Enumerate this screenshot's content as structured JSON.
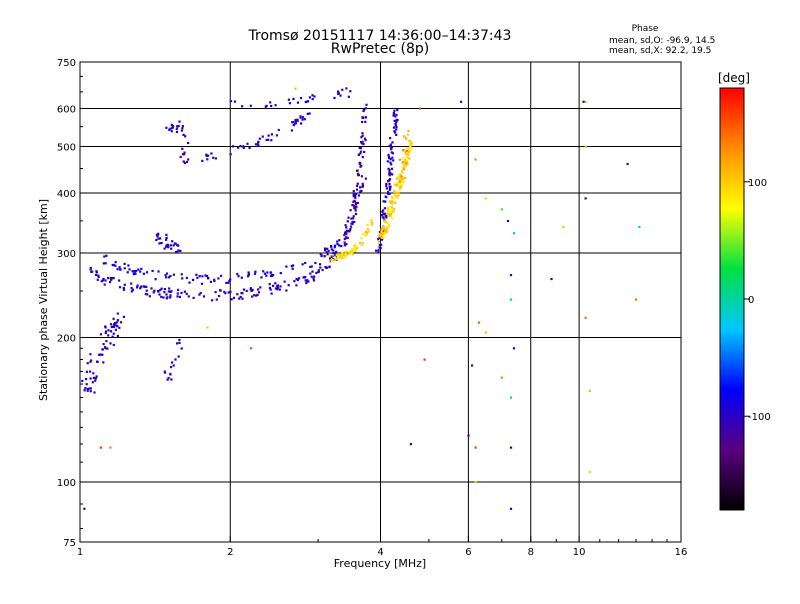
{
  "header": {
    "title_line1": "Tromsø 20151117 14:36:00–14:37:43",
    "title_line2": "RwPretec (8p)",
    "stats_title": "Phase",
    "stats_line1": "mean, sd,O: -96.9, 14.5",
    "stats_line2": "mean, sd,X:  92.2, 19.5"
  },
  "colorbar": {
    "label": "[deg]",
    "ticks": [
      {
        "value": 100,
        "label": "100"
      },
      {
        "value": 0,
        "label": "0"
      },
      {
        "value": -100,
        "label": "-100"
      }
    ],
    "range": [
      -180,
      180
    ],
    "colors": [
      "#000000",
      "#5a0080",
      "#0000ff",
      "#00c8ff",
      "#00e040",
      "#ffff00",
      "#ff8c00",
      "#ff0000"
    ]
  },
  "chart_data": {
    "type": "scatter",
    "title": "Tromsø 20151117 14:36:00–14:37:43",
    "subtitle": "RwPretec (8p)",
    "xlabel": "Frequency [MHz]",
    "ylabel": "Stationary phase Virtual Height [km]",
    "xscale": "log",
    "yscale": "log",
    "xlim": [
      1,
      16
    ],
    "ylim": [
      75,
      750
    ],
    "grid": true,
    "x_ticks": [
      {
        "value": 1,
        "label": "1"
      },
      {
        "value": 2,
        "label": "2"
      },
      {
        "value": 4,
        "label": "4"
      },
      {
        "value": 6,
        "label": "6"
      },
      {
        "value": 8,
        "label": "8"
      },
      {
        "value": 10,
        "label": "10"
      },
      {
        "value": 16,
        "label": "16"
      }
    ],
    "x_gridlines": [
      2,
      4,
      6,
      8,
      10
    ],
    "y_ticks": [
      {
        "value": 75,
        "label": "75"
      },
      {
        "value": 100,
        "label": "100"
      },
      {
        "value": 200,
        "label": "200"
      },
      {
        "value": 300,
        "label": "300"
      },
      {
        "value": 400,
        "label": "400"
      },
      {
        "value": 500,
        "label": "500"
      },
      {
        "value": 600,
        "label": "600"
      },
      {
        "value": 750,
        "label": "750"
      }
    ],
    "y_gridlines": [
      100,
      200,
      300,
      400,
      500,
      600
    ],
    "color_by": "phase_deg",
    "series": [
      {
        "traces": [
          {
            "x": [
              1.05,
              1.1,
              1.2,
              1.35,
              1.5,
              1.7,
              1.9,
              2.1,
              2.4,
              2.7,
              3.0,
              3.2,
              3.4,
              3.55,
              3.7
            ],
            "y": [
              280,
              266,
              257,
              250,
              247,
              245,
              245,
              247,
              252,
              260,
              272,
              290,
              320,
              370,
              430
            ],
            "phase": -100,
            "spread": 0.035,
            "n": 14
          },
          {
            "x": [
              1.12,
              1.2,
              1.3,
              1.45,
              1.6,
              1.8,
              2.0,
              2.3,
              2.6,
              2.9,
              3.1,
              3.3
            ],
            "y": [
              292,
              282,
              275,
              268,
              266,
              264,
              265,
              270,
              278,
              286,
              300,
              318
            ],
            "phase": -95,
            "spread": 0.03,
            "n": 10
          },
          {
            "x": [
              3.35,
              3.45,
              3.55,
              3.62,
              3.68,
              3.72
            ],
            "y": [
              310,
              340,
              380,
              430,
              500,
              610
            ],
            "phase": -110,
            "spread": 0.025,
            "n": 16
          },
          {
            "x": [
              3.95,
              4.02,
              4.08,
              4.15,
              4.2,
              4.25,
              4.3
            ],
            "y": [
              300,
              330,
              370,
              420,
              480,
              540,
              600
            ],
            "phase": -100,
            "spread": 0.025,
            "n": 18
          },
          {
            "x": [
              1.38,
              1.45,
              1.5,
              1.55,
              1.6
            ],
            "y": [
              335,
              322,
              315,
              310,
              305
            ],
            "phase": -100,
            "spread": 0.04,
            "n": 8
          },
          {
            "x": [
              1.02,
              1.05,
              1.08,
              1.12,
              1.16,
              1.2
            ],
            "y": [
              150,
              165,
              180,
              195,
              210,
              220
            ],
            "phase": -100,
            "spread": 0.06,
            "n": 14
          },
          {
            "x": [
              1.5,
              1.55,
              1.6,
              1.65
            ],
            "y": [
              530,
              560,
              520,
              450
            ],
            "phase": -100,
            "spread": 0.05,
            "n": 10
          },
          {
            "x": [
              1.75,
              1.9,
              2.1,
              2.3,
              2.5,
              2.7,
              2.9
            ],
            "y": [
              470,
              480,
              500,
              510,
              530,
              560,
              600
            ],
            "phase": -100,
            "spread": 0.03,
            "n": 8
          },
          {
            "x": [
              2.0,
              2.3,
              2.6,
              2.9,
              3.2,
              3.5
            ],
            "y": [
              610,
              600,
              620,
              630,
              640,
              650
            ],
            "phase": -100,
            "spread": 0.03,
            "n": 6
          },
          {
            "x": [
              1.5,
              1.55,
              1.6
            ],
            "y": [
              165,
              180,
              195
            ],
            "phase": -100,
            "spread": 0.04,
            "n": 8
          }
        ]
      },
      {
        "traces": [
          {
            "x": [
              3.15,
              3.3,
              3.45,
              3.6,
              3.75,
              3.85
            ],
            "y": [
              292,
              296,
              300,
              310,
              330,
              350
            ],
            "phase": 95,
            "spread": 0.02,
            "n": 12
          },
          {
            "x": [
              4.0,
              4.1,
              4.2,
              4.3,
              4.4,
              4.5,
              4.6
            ],
            "y": [
              320,
              345,
              370,
              400,
              430,
              470,
              520
            ],
            "phase": 95,
            "spread": 0.03,
            "n": 22
          },
          {
            "x": [
              4.35,
              4.45,
              4.55
            ],
            "y": [
              420,
              480,
              550
            ],
            "phase": 120,
            "spread": 0.03,
            "n": 6
          }
        ]
      },
      {
        "points": [
          {
            "x": 6.2,
            "y": 470,
            "phase": 130
          },
          {
            "x": 6.5,
            "y": 390,
            "phase": 95
          },
          {
            "x": 7.0,
            "y": 370,
            "phase": 40
          },
          {
            "x": 7.2,
            "y": 350,
            "phase": -100
          },
          {
            "x": 7.4,
            "y": 330,
            "phase": 10
          },
          {
            "x": 7.3,
            "y": 270,
            "phase": -100
          },
          {
            "x": 7.3,
            "y": 240,
            "phase": -20
          },
          {
            "x": 6.3,
            "y": 215,
            "phase": 150
          },
          {
            "x": 6.5,
            "y": 205,
            "phase": 110
          },
          {
            "x": 7.4,
            "y": 190,
            "phase": -100
          },
          {
            "x": 6.1,
            "y": 175,
            "phase": -110
          },
          {
            "x": 7.0,
            "y": 165,
            "phase": 130
          },
          {
            "x": 7.3,
            "y": 150,
            "phase": -20
          },
          {
            "x": 6.0,
            "y": 125,
            "phase": -120
          },
          {
            "x": 6.2,
            "y": 118,
            "phase": 160
          },
          {
            "x": 7.3,
            "y": 118,
            "phase": -100
          },
          {
            "x": 6.2,
            "y": 100,
            "phase": 100
          },
          {
            "x": 7.3,
            "y": 88,
            "phase": -100
          },
          {
            "x": 8.8,
            "y": 265,
            "phase": -100
          },
          {
            "x": 10.3,
            "y": 390,
            "phase": -100
          },
          {
            "x": 10.3,
            "y": 220,
            "phase": 140
          },
          {
            "x": 10.5,
            "y": 155,
            "phase": 110
          },
          {
            "x": 10.5,
            "y": 105,
            "phase": 100
          },
          {
            "x": 13.0,
            "y": 240,
            "phase": 140
          },
          {
            "x": 13.2,
            "y": 340,
            "phase": -20
          },
          {
            "x": 10.3,
            "y": 500,
            "phase": 100
          },
          {
            "x": 10.3,
            "y": 620,
            "phase": 110
          },
          {
            "x": 4.8,
            "y": 600,
            "phase": 150
          },
          {
            "x": 4.9,
            "y": 180,
            "phase": 160
          },
          {
            "x": 4.6,
            "y": 120,
            "phase": -100
          },
          {
            "x": 5.8,
            "y": 620,
            "phase": -100
          },
          {
            "x": 1.1,
            "y": 118,
            "phase": 160
          },
          {
            "x": 1.15,
            "y": 118,
            "phase": 130
          },
          {
            "x": 2.2,
            "y": 190,
            "phase": 150
          },
          {
            "x": 1.8,
            "y": 210,
            "phase": 100
          },
          {
            "x": 2.7,
            "y": 660,
            "phase": 110
          },
          {
            "x": 1.02,
            "y": 88,
            "phase": -100
          },
          {
            "x": 12.5,
            "y": 460,
            "phase": -100
          },
          {
            "x": 9.3,
            "y": 340,
            "phase": 110
          },
          {
            "x": 10.2,
            "y": 620,
            "phase": -100
          }
        ]
      }
    ]
  }
}
